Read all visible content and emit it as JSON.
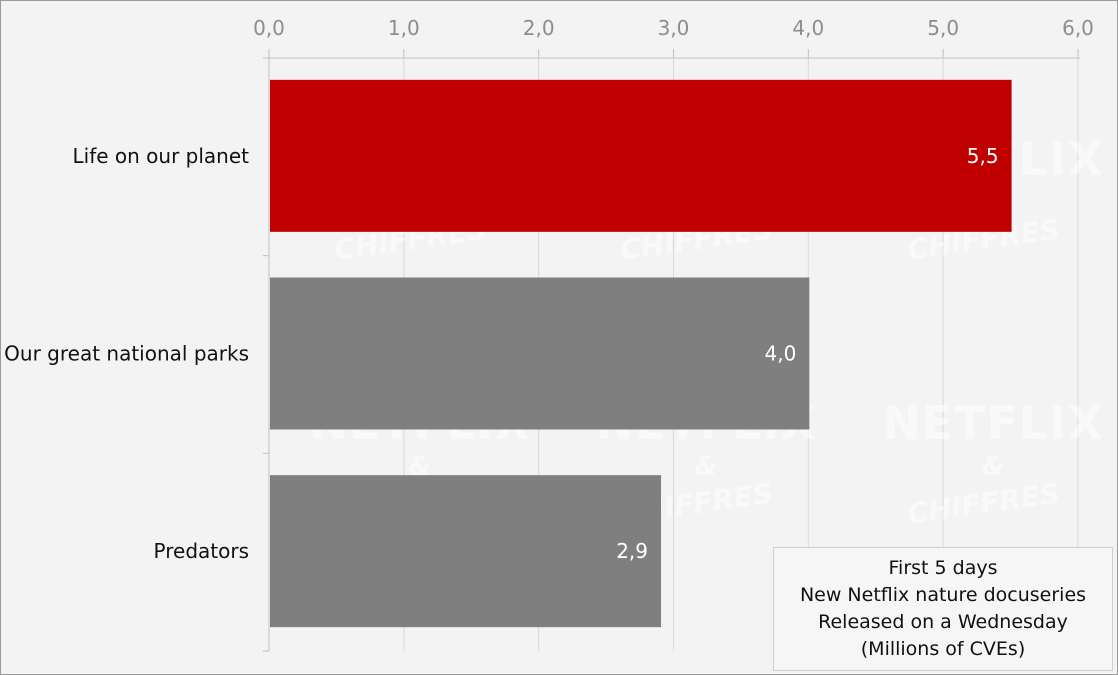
{
  "chart_data": {
    "type": "bar",
    "orientation": "horizontal",
    "categories": [
      "Life on our planet",
      "Our great national parks",
      "Predators"
    ],
    "values": [
      5.5,
      4.0,
      2.9
    ],
    "value_labels": [
      "5,5",
      "4,0",
      "2,9"
    ],
    "xlim": [
      0,
      6
    ],
    "x_ticks": [
      0,
      1,
      2,
      3,
      4,
      5,
      6
    ],
    "x_tick_labels": [
      "0,0",
      "1,0",
      "2,0",
      "3,0",
      "4,0",
      "5,0",
      "6,0"
    ],
    "x_axis_position": "top",
    "grid": true,
    "bar_colors": [
      "#c00000",
      "#7f7f7f",
      "#7f7f7f"
    ]
  },
  "note": {
    "lines": [
      "First 5 days",
      "New Netflix nature docuseries",
      "Released on a Wednesday",
      "(Millions of CVEs)"
    ]
  },
  "watermark": {
    "line1": "NETFLIX",
    "line2": "&",
    "line3": "CHIFFRES"
  }
}
